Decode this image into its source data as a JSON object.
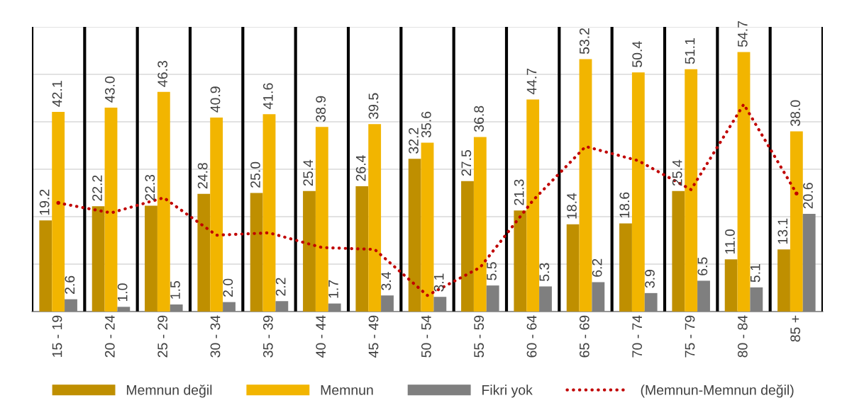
{
  "chart_data": {
    "type": "bar",
    "categories": [
      "15 - 19",
      "20 - 24",
      "25 - 29",
      "30 - 34",
      "35 - 39",
      "40 - 44",
      "45 - 49",
      "50 - 54",
      "55 - 59",
      "60 - 64",
      "65 - 69",
      "70 - 74",
      "75 - 79",
      "80 - 84",
      "85 +"
    ],
    "series": [
      {
        "name": "Memnun değil",
        "color": "#bf8f00",
        "values": [
          19.2,
          22.2,
          22.3,
          24.8,
          25,
          25.4,
          26.4,
          32.2,
          27.5,
          21.3,
          18.4,
          18.6,
          25.4,
          11,
          13.1
        ],
        "value_labels": [
          "19.2",
          "22.2",
          "22.3",
          "24.8",
          "25.0",
          "25.4",
          "26.4",
          "32.2",
          "27.5",
          "21.3",
          "18.4",
          "18.6",
          "25.4",
          "11.0",
          "13.1"
        ]
      },
      {
        "name": "Memnun",
        "color": "#f2b500",
        "values": [
          42.1,
          43,
          46.3,
          40.9,
          41.6,
          38.9,
          39.5,
          35.6,
          36.8,
          44.7,
          53.2,
          50.4,
          51.1,
          54.7,
          38
        ],
        "value_labels": [
          "42.1",
          "43.0",
          "46.3",
          "40.9",
          "41.6",
          "38.9",
          "39.5",
          "35.6",
          "36.8",
          "44.7",
          "53.2",
          "50.4",
          "51.1",
          "54.7",
          "38.0"
        ]
      },
      {
        "name": "Fikri yok",
        "color": "#7f7f7f",
        "values": [
          2.6,
          1,
          1.5,
          2,
          2.2,
          1.7,
          3.4,
          3.1,
          5.5,
          5.3,
          6.2,
          3.9,
          6.5,
          5.1,
          20.6
        ],
        "value_labels": [
          "2.6",
          "1.0",
          "1.5",
          "2.0",
          "2.2",
          "1.7",
          "3.4",
          "3.1",
          "5.5",
          "5.3",
          "6.2",
          "3.9",
          "6.5",
          "5.1",
          "20.6"
        ]
      },
      {
        "name": "(Memnun-Memnun değil)",
        "type": "line",
        "color": "#c00000",
        "line_style": "dotted",
        "marker": "none",
        "values": [
          22.9,
          20.8,
          24.0,
          16.1,
          16.6,
          13.5,
          13.1,
          3.4,
          9.3,
          23.4,
          34.8,
          31.8,
          25.7,
          43.7,
          24.9
        ]
      }
    ],
    "ylim": [
      0,
      60
    ],
    "yticks": [
      {
        "value": 0,
        "label": null
      },
      {
        "value": 10,
        "label": null
      },
      {
        "value": 20,
        "label": null
      },
      {
        "value": 30,
        "label": null
      },
      {
        "value": 40,
        "label": null
      },
      {
        "value": 50,
        "label": null
      },
      {
        "value": 60,
        "label": null
      }
    ],
    "tick_labels": "x",
    "grid": true,
    "legend": "bottom"
  }
}
